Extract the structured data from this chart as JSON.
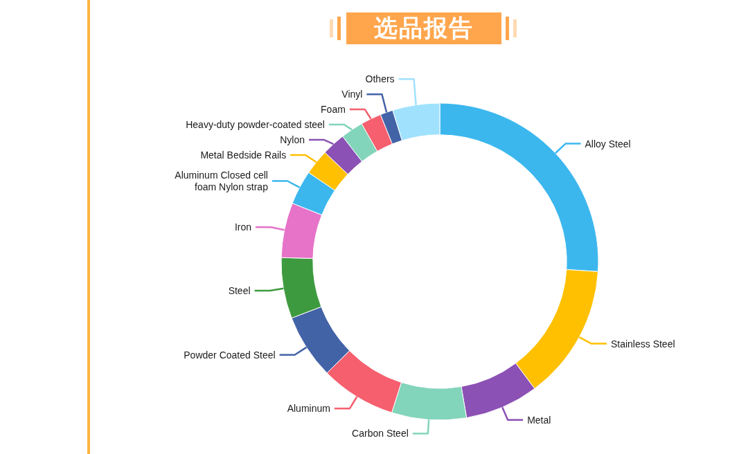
{
  "chart_data": {
    "type": "donut",
    "title": "选品报告",
    "categories": [
      "Alloy Steel",
      "Stainless Steel",
      "Metal",
      "Carbon Steel",
      "Aluminum",
      "Powder Coated Steel",
      "Steel",
      "Iron",
      "Aluminum Closed cell foam Nylon strap",
      "Metal Bedside Rails",
      "Nylon",
      "Heavy-duty powder-coated steel",
      "Foam",
      "Vinyl",
      "Others"
    ],
    "values": [
      26.0,
      13.8,
      7.5,
      7.6,
      7.7,
      6.6,
      6.2,
      5.6,
      3.5,
      2.6,
      2.4,
      2.3,
      2.1,
      1.3,
      4.8
    ],
    "colors": [
      "#3cb7ee",
      "#fec000",
      "#8b51b4",
      "#82d4bb",
      "#f55f6e",
      "#4363a7",
      "#3e9a3f",
      "#e673c8",
      "#3cb7ee",
      "#fec000",
      "#8b51b4",
      "#82d4bb",
      "#f55f6e",
      "#4363a7",
      "#a0e2fd"
    ]
  }
}
